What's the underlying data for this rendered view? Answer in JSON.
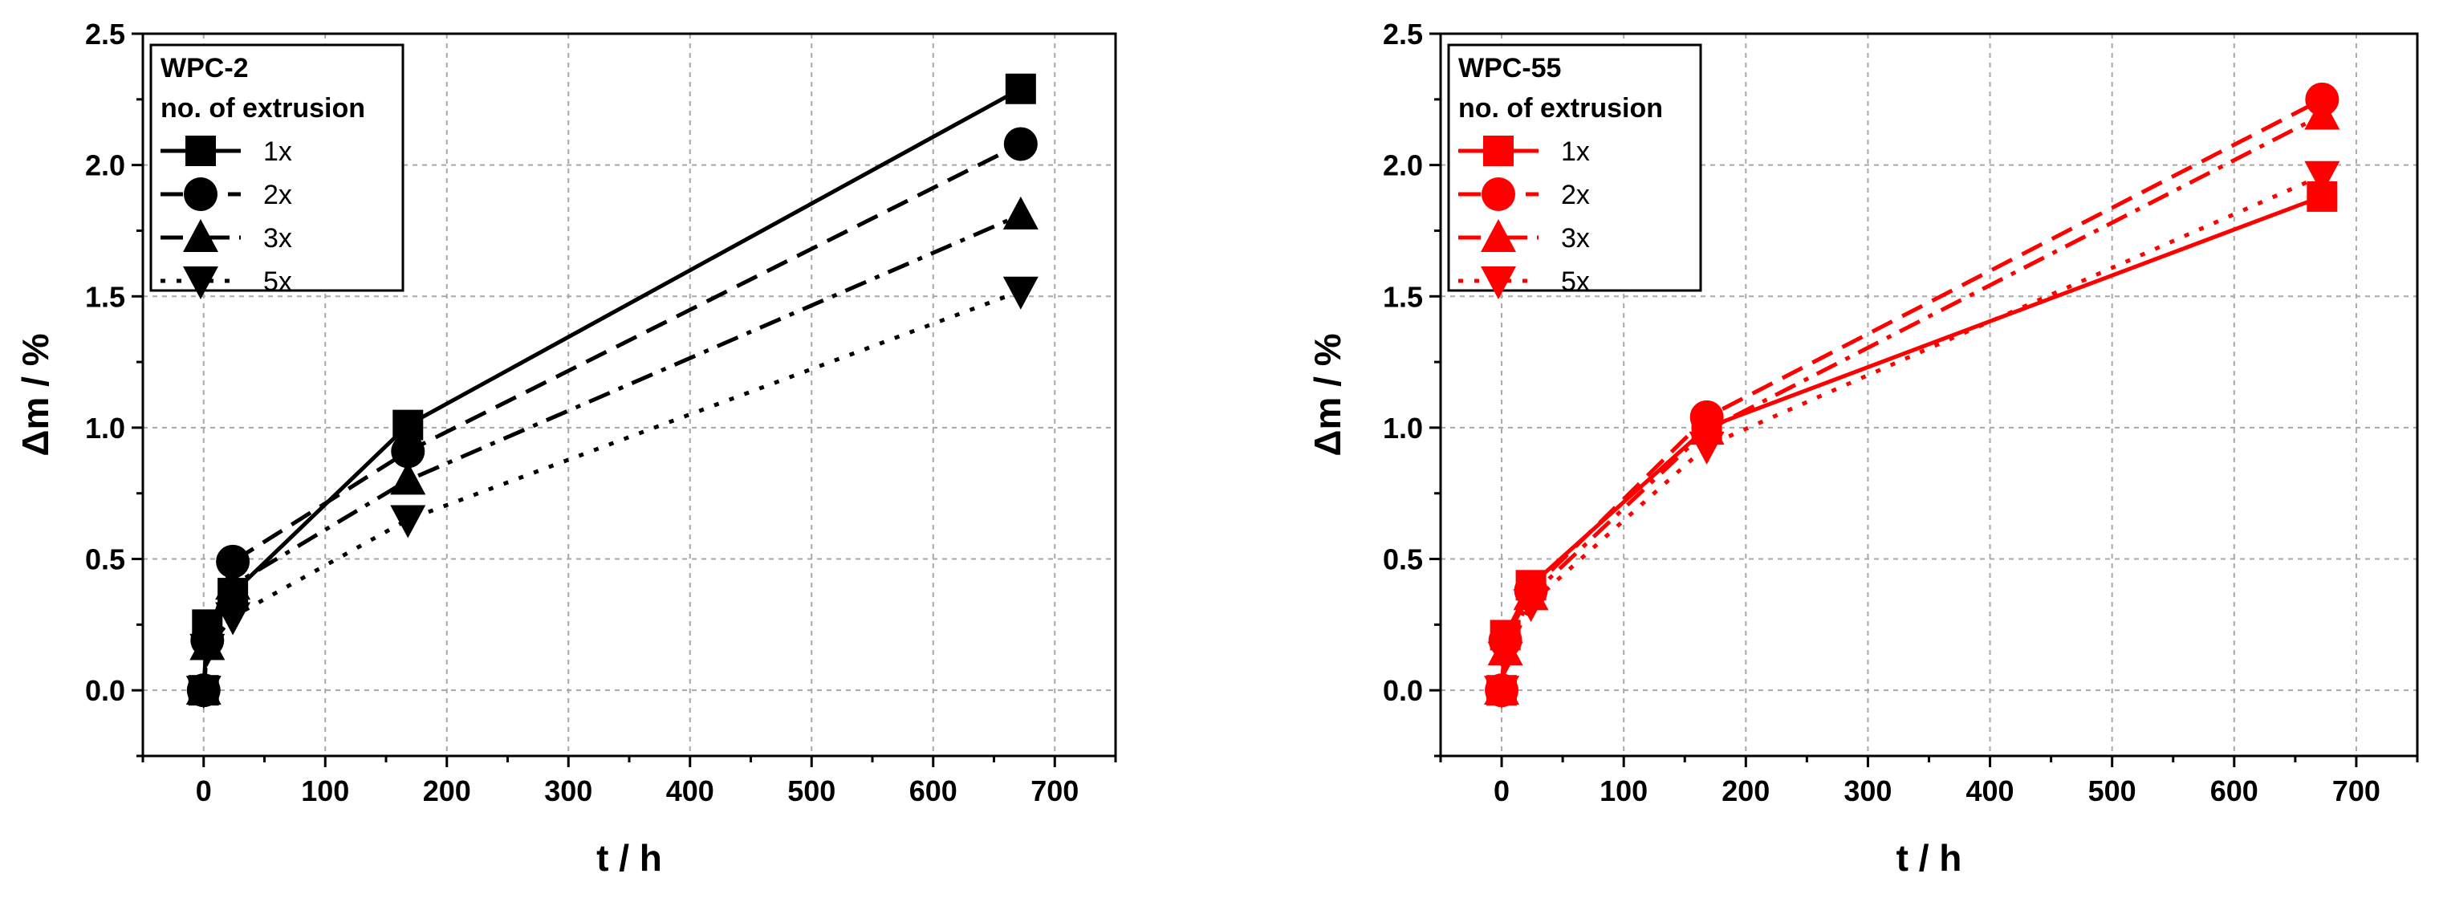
{
  "chart_data": [
    {
      "type": "line",
      "title": "",
      "xlabel": "t / h",
      "ylabel": "Δm / %",
      "xlim": [
        -50,
        750
      ],
      "ylim": [
        -0.25,
        2.5
      ],
      "xticks": [
        0,
        100,
        200,
        300,
        400,
        500,
        600,
        700
      ],
      "yticks": [
        0.0,
        0.5,
        1.0,
        1.5,
        2.0,
        2.5
      ],
      "xtick_labels": [
        "0",
        "100",
        "200",
        "300",
        "400",
        "500",
        "600",
        "700"
      ],
      "ytick_labels": [
        "0.0",
        "0.5",
        "1.0",
        "1.5",
        "2.0",
        "2.5"
      ],
      "grid": true,
      "color": "#000000",
      "legend": {
        "title_line1": "WPC-2",
        "title_line2": "no. of extrusion",
        "position": "top-left"
      },
      "series": [
        {
          "name": "1x",
          "marker": "square",
          "dash": "solid",
          "x": [
            0,
            3,
            24,
            168,
            672
          ],
          "y": [
            0.0,
            0.25,
            0.37,
            1.01,
            2.29
          ]
        },
        {
          "name": "2x",
          "marker": "circle",
          "dash": "dash",
          "x": [
            0,
            3,
            24,
            168,
            672
          ],
          "y": [
            0.0,
            0.19,
            0.49,
            0.91,
            2.08
          ]
        },
        {
          "name": "3x",
          "marker": "triangle-up",
          "dash": "dashdot",
          "x": [
            0,
            3,
            24,
            168,
            672
          ],
          "y": [
            0.0,
            0.17,
            0.4,
            0.8,
            1.81
          ]
        },
        {
          "name": "5x",
          "marker": "triangle-down",
          "dash": "dot",
          "x": [
            0,
            3,
            24,
            168,
            672
          ],
          "y": [
            0.0,
            0.16,
            0.28,
            0.65,
            1.52
          ]
        }
      ]
    },
    {
      "type": "line",
      "title": "",
      "xlabel": "t / h",
      "ylabel": "Δm / %",
      "xlim": [
        -50,
        750
      ],
      "ylim": [
        -0.25,
        2.5
      ],
      "xticks": [
        0,
        100,
        200,
        300,
        400,
        500,
        600,
        700
      ],
      "yticks": [
        0.0,
        0.5,
        1.0,
        1.5,
        2.0,
        2.5
      ],
      "xtick_labels": [
        "0",
        "100",
        "200",
        "300",
        "400",
        "500",
        "600",
        "700"
      ],
      "ytick_labels": [
        "0.0",
        "0.5",
        "1.0",
        "1.5",
        "2.0",
        "2.5"
      ],
      "grid": true,
      "color": "#ff0000",
      "legend": {
        "title_line1": "WPC-55",
        "title_line2": "no. of extrusion",
        "position": "top-left"
      },
      "series": [
        {
          "name": "1x",
          "marker": "square",
          "dash": "solid",
          "x": [
            0,
            3,
            24,
            168,
            672
          ],
          "y": [
            0.0,
            0.21,
            0.4,
            1.0,
            1.88
          ]
        },
        {
          "name": "2x",
          "marker": "circle",
          "dash": "dash",
          "x": [
            0,
            3,
            24,
            168,
            672
          ],
          "y": [
            0.0,
            0.19,
            0.38,
            1.04,
            2.25
          ]
        },
        {
          "name": "3x",
          "marker": "triangle-up",
          "dash": "dashdot",
          "x": [
            0,
            3,
            24,
            168,
            672
          ],
          "y": [
            0.0,
            0.15,
            0.36,
            0.99,
            2.19
          ]
        },
        {
          "name": "5x",
          "marker": "triangle-down",
          "dash": "dot",
          "x": [
            0,
            3,
            24,
            168,
            672
          ],
          "y": [
            0.0,
            0.13,
            0.33,
            0.93,
            1.96
          ]
        }
      ]
    }
  ]
}
